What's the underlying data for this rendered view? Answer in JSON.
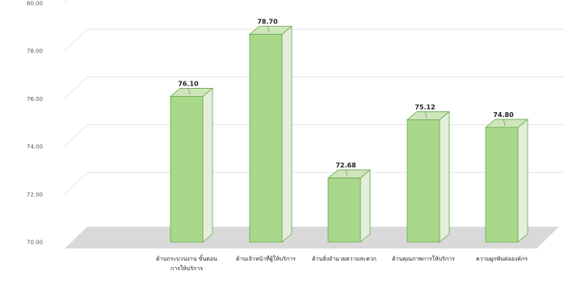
{
  "chart_data": {
    "type": "bar",
    "style": "3d-column",
    "categories": [
      [
        "ด้านกระบวนงาน ขั้นตอน",
        "การให้บริการ"
      ],
      [
        "ด้านเจ้าหน้าที่ผู้ให้บริการ"
      ],
      [
        "ด้านสิ่งอำนวยความสะดวก"
      ],
      [
        "ด้านคุณภาพการให้บริการ"
      ],
      [
        "ความผูกพันต่อองค์กร"
      ]
    ],
    "values": [
      76.1,
      78.7,
      72.68,
      75.12,
      74.8
    ],
    "data_labels": [
      "76.10",
      "78.70",
      "72.68",
      "75.12",
      "74.80"
    ],
    "y_ticks": [
      "70.00",
      "72.00",
      "74.00",
      "76.00",
      "78.00",
      "80.00"
    ],
    "ylim": [
      70,
      80
    ],
    "grid": true,
    "colors": {
      "bar_front": "#a9d88a",
      "bar_side": "#e3eedb",
      "bar_top": "#cfe6bb",
      "bar_edge": "#6aa84f",
      "floor": "#d9d9d9",
      "grid": "#e6e6e6"
    }
  }
}
